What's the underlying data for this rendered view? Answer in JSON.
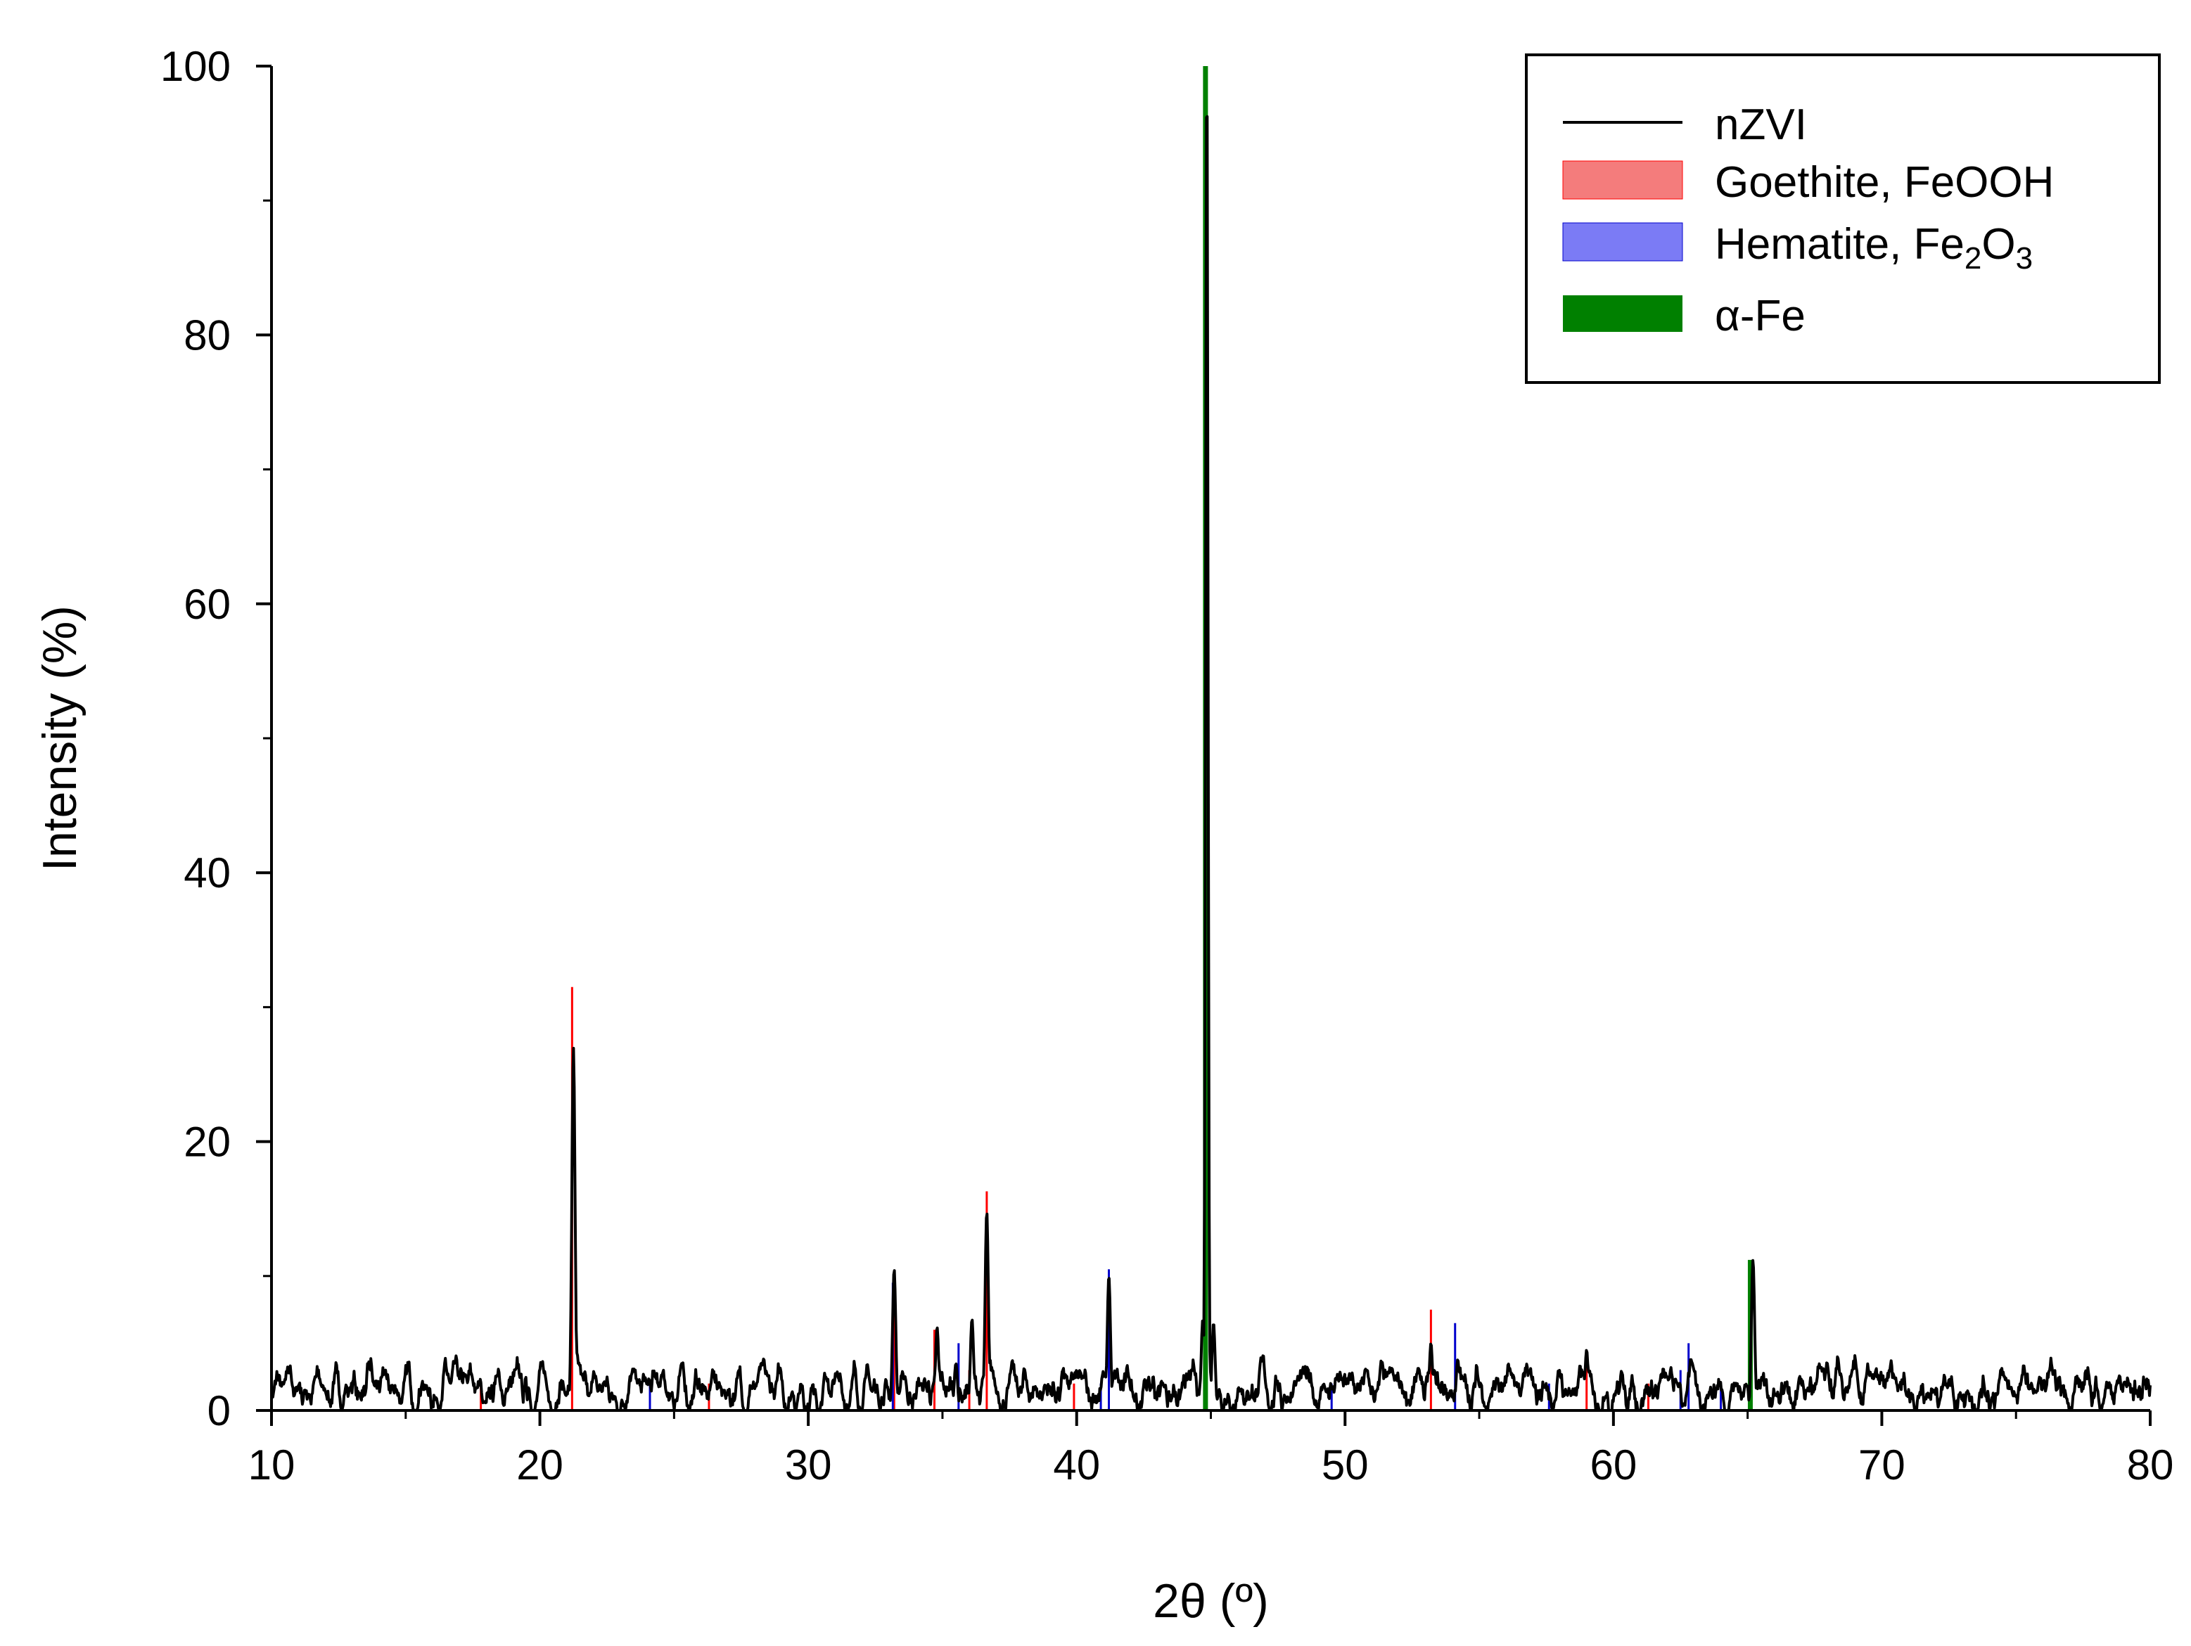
{
  "chart_data": {
    "type": "line",
    "xlabel": "2θ (º)",
    "ylabel": "Intensity (%)",
    "xlim": [
      10,
      80
    ],
    "ylim": [
      0,
      100
    ],
    "x_ticks": [
      "10",
      "20",
      "30",
      "40",
      "50",
      "60",
      "70",
      "80"
    ],
    "y_ticks": [
      "0",
      "20",
      "40",
      "60",
      "80",
      "100"
    ],
    "grid": false,
    "legend_position": "top-right",
    "legend": [
      {
        "key": "nzvi",
        "label": "nZVI",
        "color": "#000000",
        "style": "line"
      },
      {
        "key": "goethite",
        "label": "Goethite, FeOOH",
        "color": "#f47c7c",
        "style": "box"
      },
      {
        "key": "hematite",
        "label_main": "Hematite, Fe",
        "sub1": "2",
        "label_mid": "O",
        "sub2": "3",
        "color": "#7b7bf5",
        "style": "box"
      },
      {
        "key": "alpha_fe",
        "label_prefix": "α",
        "label_rest": "-Fe",
        "color": "#008000",
        "style": "box"
      }
    ],
    "series": [
      {
        "name": "nZVI",
        "color": "#000000",
        "peaks": [
          [
            21.25,
            27.0
          ],
          [
            33.2,
            10.5
          ],
          [
            34.8,
            6.2
          ],
          [
            35.5,
            3.5
          ],
          [
            36.1,
            6.8
          ],
          [
            36.65,
            14.8
          ],
          [
            41.2,
            10.0
          ],
          [
            44.7,
            6.8
          ],
          [
            44.85,
            100.0
          ],
          [
            45.1,
            6.5
          ],
          [
            53.2,
            5.0
          ],
          [
            54.2,
            3.8
          ],
          [
            59.0,
            4.5
          ],
          [
            62.9,
            3.8
          ],
          [
            65.2,
            11.2
          ]
        ],
        "noise_seed": 7
      },
      {
        "name": "Goethite, FeOOH",
        "color": "#ff0000",
        "sticks": [
          [
            17.8,
            2.0
          ],
          [
            21.2,
            31.5
          ],
          [
            26.3,
            2.0
          ],
          [
            33.2,
            10.0
          ],
          [
            34.7,
            6.0
          ],
          [
            36.0,
            3.0
          ],
          [
            36.65,
            16.3
          ],
          [
            39.9,
            2.0
          ],
          [
            53.2,
            7.5
          ],
          [
            59.0,
            4.5
          ],
          [
            61.3,
            2.0
          ],
          [
            64.0,
            2.0
          ]
        ]
      },
      {
        "name": "Hematite, Fe2O3",
        "color": "#0000cc",
        "sticks": [
          [
            24.1,
            2.0
          ],
          [
            33.15,
            9.5
          ],
          [
            35.6,
            5.0
          ],
          [
            40.9,
            2.0
          ],
          [
            41.2,
            10.5
          ],
          [
            49.5,
            2.0
          ],
          [
            54.1,
            6.5
          ],
          [
            57.6,
            2.0
          ],
          [
            62.5,
            3.0
          ],
          [
            62.8,
            5.0
          ],
          [
            64.0,
            2.0
          ]
        ]
      },
      {
        "name": "α-Fe",
        "color": "#008000",
        "sticks": [
          [
            44.8,
            100.0
          ],
          [
            65.1,
            11.2
          ]
        ]
      }
    ]
  }
}
